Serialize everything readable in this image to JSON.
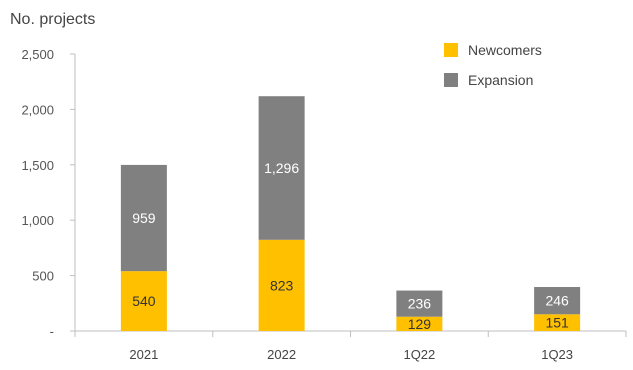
{
  "chart_data": {
    "type": "bar",
    "stacked": true,
    "ylabel": "No. projects",
    "categories": [
      "2021",
      "2022",
      "1Q22",
      "1Q23"
    ],
    "series": [
      {
        "name": "Newcomers",
        "values": [
          540,
          823,
          129,
          151
        ],
        "color": "#FFC000"
      },
      {
        "name": "Expansion",
        "values": [
          959,
          1296,
          236,
          246
        ],
        "color": "#808080"
      }
    ],
    "ylim": [
      0,
      2500
    ],
    "yticks": [
      0,
      500,
      1000,
      1500,
      2000,
      2500
    ],
    "ytick_labels": [
      "-",
      "500",
      "1,000",
      "1,500",
      "2,000",
      "2,500"
    ],
    "data_labels": [
      [
        "540",
        "823",
        "129",
        "151"
      ],
      [
        "959",
        "1,296",
        "236",
        "246"
      ]
    ],
    "legend_position": "top-right",
    "grid": false
  }
}
